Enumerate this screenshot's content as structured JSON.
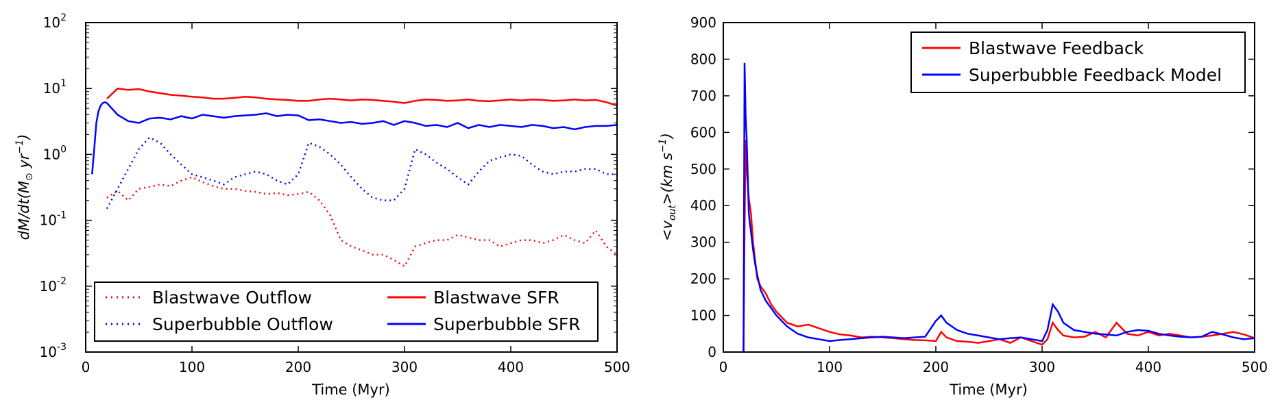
{
  "chart_data": [
    {
      "type": "line",
      "yscale": "log",
      "xlabel": "Time (Myr)",
      "ylabel_parts": [
        "dM/dt(M",
        "⊙",
        " yr",
        "−1",
        ")"
      ],
      "xlim": [
        0,
        500
      ],
      "ylim": [
        0.001,
        100
      ],
      "x_ticks": [
        0,
        100,
        200,
        300,
        400,
        500
      ],
      "x_tick_labels": [
        "0",
        "100",
        "200",
        "300",
        "400",
        "500"
      ],
      "y_ticks": [
        {
          "value": 0.001,
          "base": "10",
          "exp": "-3"
        },
        {
          "value": 0.01,
          "base": "10",
          "exp": "-2"
        },
        {
          "value": 0.1,
          "base": "10",
          "exp": "-1"
        },
        {
          "value": 1,
          "base": "10",
          "exp": "0"
        },
        {
          "value": 10,
          "base": "10",
          "exp": "1"
        },
        {
          "value": 100,
          "base": "10",
          "exp": "2"
        }
      ],
      "legend_position": "lower-center",
      "series": [
        {
          "name": "Blastwave Outflow",
          "color": "#ff0000",
          "style": "dotted",
          "x": [
            20,
            30,
            40,
            50,
            60,
            70,
            80,
            90,
            100,
            110,
            120,
            130,
            140,
            150,
            160,
            170,
            180,
            190,
            200,
            210,
            220,
            230,
            240,
            250,
            260,
            270,
            280,
            290,
            300,
            310,
            320,
            330,
            340,
            350,
            360,
            370,
            380,
            390,
            400,
            410,
            420,
            430,
            440,
            450,
            460,
            470,
            480,
            490,
            500
          ],
          "y": [
            0.22,
            0.28,
            0.2,
            0.3,
            0.32,
            0.35,
            0.33,
            0.4,
            0.45,
            0.38,
            0.33,
            0.3,
            0.3,
            0.28,
            0.27,
            0.25,
            0.26,
            0.24,
            0.25,
            0.27,
            0.2,
            0.12,
            0.05,
            0.04,
            0.035,
            0.03,
            0.03,
            0.025,
            0.02,
            0.04,
            0.045,
            0.05,
            0.05,
            0.06,
            0.055,
            0.05,
            0.05,
            0.04,
            0.045,
            0.05,
            0.05,
            0.045,
            0.05,
            0.06,
            0.05,
            0.045,
            0.07,
            0.04,
            0.03
          ]
        },
        {
          "name": "Superbubble Outflow",
          "color": "#0000ff",
          "style": "dotted",
          "x": [
            20,
            30,
            40,
            50,
            60,
            70,
            80,
            90,
            100,
            110,
            120,
            130,
            140,
            150,
            160,
            170,
            180,
            190,
            200,
            210,
            220,
            230,
            240,
            250,
            260,
            270,
            280,
            290,
            300,
            310,
            320,
            330,
            340,
            350,
            360,
            370,
            380,
            390,
            400,
            410,
            420,
            430,
            440,
            450,
            460,
            470,
            480,
            490,
            500
          ],
          "y": [
            0.15,
            0.3,
            0.6,
            1.2,
            1.8,
            1.5,
            1.0,
            0.7,
            0.5,
            0.45,
            0.4,
            0.35,
            0.45,
            0.5,
            0.55,
            0.5,
            0.4,
            0.35,
            0.5,
            1.5,
            1.3,
            1.0,
            0.7,
            0.45,
            0.3,
            0.22,
            0.2,
            0.2,
            0.3,
            1.2,
            1.0,
            0.75,
            0.6,
            0.45,
            0.35,
            0.55,
            0.8,
            0.9,
            1.0,
            0.95,
            0.7,
            0.55,
            0.5,
            0.55,
            0.55,
            0.6,
            0.6,
            0.5,
            0.5
          ]
        },
        {
          "name": "Blastwave SFR",
          "color": "#ff0000",
          "style": "solid",
          "x": [
            20,
            30,
            40,
            50,
            60,
            70,
            80,
            90,
            100,
            110,
            120,
            130,
            140,
            150,
            160,
            170,
            180,
            190,
            200,
            210,
            220,
            230,
            240,
            250,
            260,
            270,
            280,
            290,
            300,
            310,
            320,
            330,
            340,
            350,
            360,
            370,
            380,
            390,
            400,
            410,
            420,
            430,
            440,
            450,
            460,
            470,
            480,
            490,
            500
          ],
          "y": [
            7,
            10,
            9.5,
            9.8,
            9,
            8.5,
            8,
            7.8,
            7.5,
            7.3,
            7,
            7,
            7.2,
            7.5,
            7.3,
            7,
            6.8,
            6.7,
            6.5,
            6.5,
            6.8,
            7,
            6.8,
            6.6,
            6.8,
            6.7,
            6.5,
            6.3,
            6,
            6.5,
            6.8,
            6.7,
            6.5,
            6.6,
            6.8,
            6.5,
            6.4,
            6.6,
            6.8,
            6.6,
            6.8,
            6.7,
            6.5,
            6.6,
            6.8,
            6.6,
            6.7,
            6.2,
            5.5
          ]
        },
        {
          "name": "Superbubble SFR",
          "color": "#0000ff",
          "style": "solid",
          "x": [
            6,
            8,
            10,
            12,
            14,
            16,
            18,
            20,
            30,
            40,
            50,
            60,
            70,
            80,
            90,
            100,
            110,
            120,
            130,
            140,
            150,
            160,
            170,
            180,
            190,
            200,
            210,
            220,
            230,
            240,
            250,
            260,
            270,
            280,
            290,
            300,
            310,
            320,
            330,
            340,
            350,
            360,
            370,
            380,
            390,
            400,
            410,
            420,
            430,
            440,
            450,
            460,
            470,
            480,
            490,
            500
          ],
          "y": [
            0.5,
            1.2,
            3.0,
            4.5,
            5.5,
            6.0,
            6.2,
            6.0,
            4.0,
            3.2,
            3.0,
            3.5,
            3.6,
            3.4,
            3.8,
            3.5,
            4.0,
            3.8,
            3.6,
            3.8,
            3.9,
            4.0,
            4.2,
            3.8,
            4.0,
            3.9,
            3.3,
            3.4,
            3.2,
            3.0,
            3.1,
            2.9,
            3.0,
            3.2,
            2.8,
            3.2,
            3.0,
            2.7,
            2.8,
            2.6,
            3.0,
            2.5,
            2.8,
            2.6,
            2.8,
            2.7,
            2.6,
            2.8,
            2.7,
            2.5,
            2.6,
            2.4,
            2.6,
            2.7,
            2.7,
            2.8
          ]
        }
      ]
    },
    {
      "type": "line",
      "yscale": "linear",
      "xlabel": "Time (Myr)",
      "ylabel_parts": [
        "<v",
        "out",
        ">(km s",
        "−1",
        ")"
      ],
      "xlim": [
        0,
        500
      ],
      "ylim": [
        0,
        900
      ],
      "x_ticks": [
        0,
        100,
        200,
        300,
        400,
        500
      ],
      "x_tick_labels": [
        "0",
        "100",
        "200",
        "300",
        "400",
        "500"
      ],
      "y_ticks": [
        0,
        100,
        200,
        300,
        400,
        500,
        600,
        700,
        800,
        900
      ],
      "y_tick_labels": [
        "0",
        "100",
        "200",
        "300",
        "400",
        "500",
        "600",
        "700",
        "800",
        "900"
      ],
      "legend_position": "upper-right",
      "series": [
        {
          "name": "Blastwave Feedback",
          "color": "#ff0000",
          "style": "solid",
          "x": [
            19,
            20,
            21,
            22,
            24,
            26,
            28,
            30,
            32,
            35,
            40,
            45,
            50,
            55,
            60,
            70,
            80,
            90,
            100,
            110,
            120,
            130,
            140,
            150,
            160,
            170,
            180,
            190,
            200,
            205,
            210,
            220,
            230,
            240,
            250,
            260,
            270,
            280,
            290,
            300,
            305,
            310,
            315,
            320,
            330,
            340,
            350,
            360,
            370,
            380,
            390,
            400,
            410,
            420,
            430,
            440,
            450,
            460,
            470,
            480,
            490,
            500
          ],
          "y": [
            0,
            330,
            580,
            500,
            420,
            380,
            300,
            250,
            200,
            180,
            160,
            130,
            110,
            95,
            80,
            70,
            75,
            65,
            55,
            48,
            45,
            40,
            42,
            40,
            38,
            35,
            33,
            32,
            30,
            55,
            40,
            30,
            28,
            25,
            30,
            35,
            25,
            40,
            30,
            20,
            35,
            80,
            60,
            45,
            40,
            42,
            55,
            40,
            80,
            50,
            45,
            55,
            45,
            50,
            45,
            40,
            42,
            45,
            50,
            55,
            48,
            38
          ]
        },
        {
          "name": "Superbubble Feedback Model",
          "color": "#0000ff",
          "style": "solid",
          "x": [
            19,
            20,
            21,
            22,
            23,
            24,
            25,
            26,
            28,
            30,
            32,
            35,
            40,
            45,
            50,
            55,
            60,
            70,
            80,
            90,
            100,
            110,
            120,
            130,
            140,
            150,
            160,
            170,
            180,
            190,
            200,
            205,
            210,
            220,
            230,
            240,
            250,
            260,
            270,
            280,
            290,
            300,
            305,
            310,
            315,
            320,
            330,
            340,
            350,
            360,
            370,
            380,
            390,
            400,
            410,
            420,
            430,
            440,
            450,
            460,
            470,
            480,
            490,
            500
          ],
          "y": [
            0,
            790,
            650,
            580,
            480,
            380,
            350,
            330,
            280,
            240,
            210,
            170,
            140,
            120,
            100,
            85,
            70,
            50,
            40,
            35,
            30,
            33,
            35,
            38,
            40,
            42,
            40,
            38,
            40,
            42,
            85,
            100,
            80,
            60,
            50,
            45,
            40,
            35,
            38,
            40,
            35,
            30,
            60,
            130,
            110,
            80,
            60,
            55,
            50,
            48,
            45,
            55,
            60,
            58,
            50,
            45,
            42,
            40,
            42,
            55,
            48,
            40,
            35,
            38
          ]
        }
      ]
    }
  ]
}
